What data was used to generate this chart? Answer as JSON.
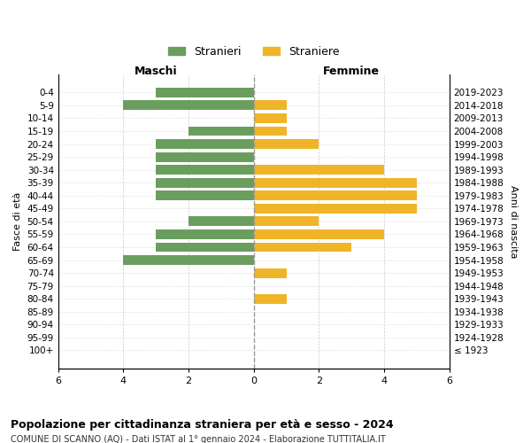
{
  "age_groups": [
    "100+",
    "95-99",
    "90-94",
    "85-89",
    "80-84",
    "75-79",
    "70-74",
    "65-69",
    "60-64",
    "55-59",
    "50-54",
    "45-49",
    "40-44",
    "35-39",
    "30-34",
    "25-29",
    "20-24",
    "15-19",
    "10-14",
    "5-9",
    "0-4"
  ],
  "birth_years": [
    "≤ 1923",
    "1924-1928",
    "1929-1933",
    "1934-1938",
    "1939-1943",
    "1944-1948",
    "1949-1953",
    "1954-1958",
    "1959-1963",
    "1964-1968",
    "1969-1973",
    "1974-1978",
    "1979-1983",
    "1984-1988",
    "1989-1993",
    "1994-1998",
    "1999-2003",
    "2004-2008",
    "2009-2013",
    "2014-2018",
    "2019-2023"
  ],
  "maschi": [
    0,
    0,
    0,
    0,
    0,
    0,
    0,
    4,
    3,
    3,
    2,
    0,
    3,
    3,
    3,
    3,
    3,
    2,
    0,
    4,
    3
  ],
  "femmine": [
    0,
    0,
    0,
    0,
    1,
    0,
    1,
    0,
    3,
    4,
    2,
    5,
    5,
    5,
    4,
    0,
    2,
    1,
    1,
    1,
    0
  ],
  "maschi_color": "#6a9e5e",
  "femmine_color": "#f0b429",
  "title": "Popolazione per cittadinanza straniera per età e sesso - 2024",
  "subtitle": "COMUNE DI SCANNO (AQ) - Dati ISTAT al 1° gennaio 2024 - Elaborazione TUTTITALIA.IT",
  "xlabel_left": "Maschi",
  "xlabel_right": "Femmine",
  "ylabel_left": "Fasce di età",
  "ylabel_right": "Anni di nascita",
  "legend_maschi": "Stranieri",
  "legend_femmine": "Straniere",
  "xlim": 6,
  "background_color": "#ffffff",
  "grid_color": "#cccccc"
}
